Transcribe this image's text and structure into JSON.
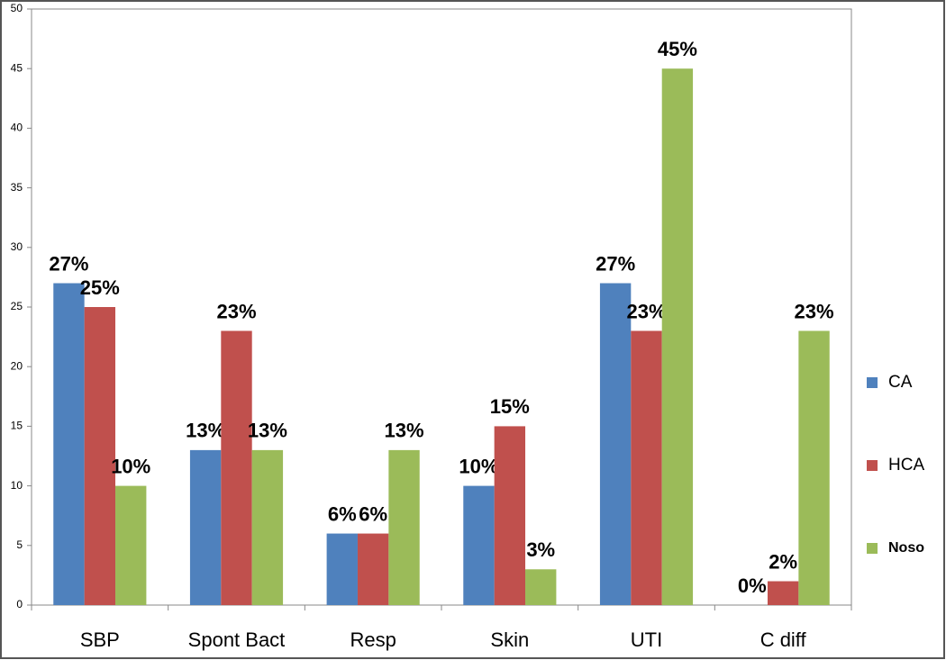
{
  "chart_data": {
    "type": "bar",
    "categories": [
      "SBP",
      "Spont Bact",
      "Resp",
      "Skin",
      "UTI",
      "C diff"
    ],
    "series": [
      {
        "name": "CA",
        "color": "#4f81bd",
        "values": [
          27,
          13,
          6,
          10,
          27,
          0
        ],
        "value_labels": [
          "27%",
          "13%",
          "6%",
          "10%",
          "27%",
          "0%"
        ]
      },
      {
        "name": "HCA",
        "color": "#c0504d",
        "values": [
          25,
          23,
          6,
          15,
          23,
          2
        ],
        "value_labels": [
          "25%",
          "23%",
          "6%",
          "15%",
          "23%",
          "2%"
        ]
      },
      {
        "name": "Noso",
        "color": "#9bbb59",
        "values": [
          10,
          13,
          13,
          3,
          45,
          23
        ],
        "value_labels": [
          "10%",
          "13%",
          "13%",
          "3%",
          "45%",
          "23%"
        ]
      }
    ],
    "ylim": [
      0,
      50
    ],
    "yticks": [
      0,
      5,
      10,
      15,
      20,
      25,
      30,
      35,
      40,
      45,
      50
    ],
    "legend": "right"
  }
}
